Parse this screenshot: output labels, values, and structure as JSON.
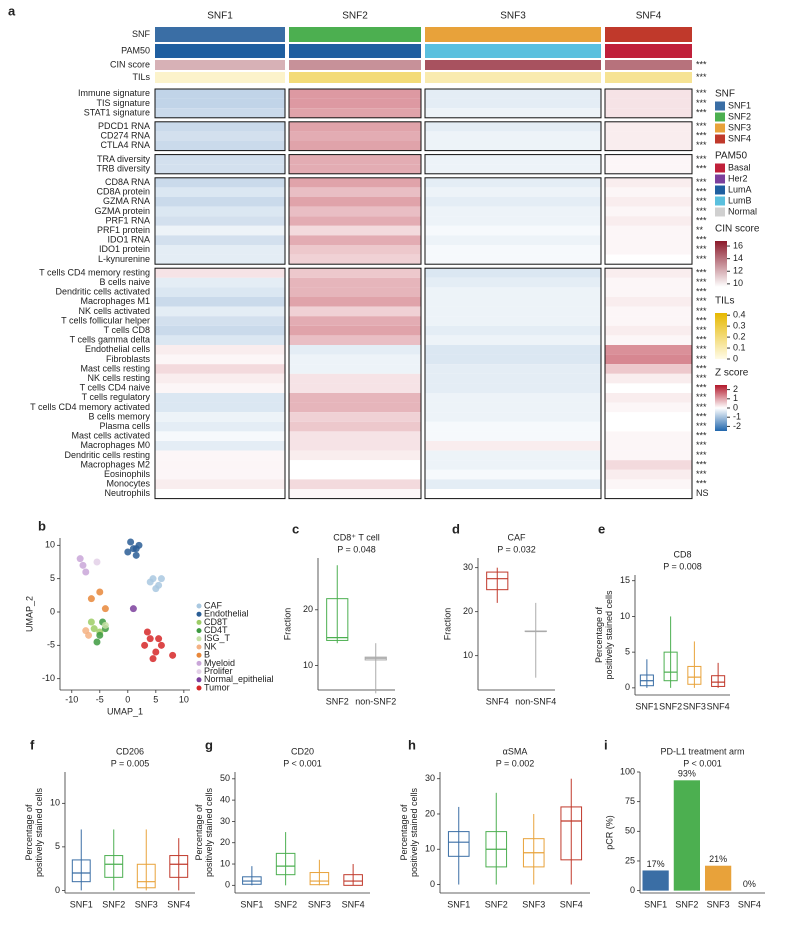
{
  "chart_data": [
    {
      "type": "heatmap",
      "panel_label": "a",
      "columns": [
        "SNF1",
        "SNF2",
        "SNF3",
        "SNF4"
      ],
      "annotation_rows": [
        {
          "label": "SNF"
        },
        {
          "label": "PAM50",
          "values": [
            "LumA",
            "LumA",
            "LumB",
            "Basal"
          ]
        },
        {
          "label": "CIN score",
          "values": [
            12,
            13,
            15,
            14
          ],
          "significance": "***"
        },
        {
          "label": "TILs",
          "values": [
            0.05,
            0.2,
            0.1,
            0.15
          ],
          "significance": "***"
        }
      ],
      "rows": [
        {
          "label": "Immune signature",
          "significance": "***",
          "values": [
            -0.7,
            1.1,
            -0.3,
            0.3
          ]
        },
        {
          "label": "TIS signature",
          "significance": "***",
          "values": [
            -0.7,
            1.1,
            -0.3,
            0.3
          ]
        },
        {
          "label": "STAT1 signature",
          "significance": "***",
          "values": [
            -0.6,
            1.0,
            -0.2,
            0.3
          ]
        },
        {
          "label": "PDCD1 RNA",
          "significance": "***",
          "values": [
            -0.6,
            1.0,
            -0.3,
            0.2
          ]
        },
        {
          "label": "CD274 RNA",
          "significance": "***",
          "values": [
            -0.5,
            0.9,
            -0.2,
            0.2
          ]
        },
        {
          "label": "CTLA4 RNA",
          "significance": "***",
          "values": [
            -0.6,
            1.0,
            -0.2,
            0.2
          ]
        },
        {
          "label": "TRA diversity",
          "significance": "***",
          "values": [
            -0.5,
            0.9,
            -0.2,
            0.1
          ]
        },
        {
          "label": "TRB diversity",
          "significance": "***",
          "values": [
            -0.5,
            0.9,
            -0.2,
            0.1
          ]
        },
        {
          "label": "CD8A RNA",
          "significance": "***",
          "values": [
            -0.6,
            1.0,
            -0.3,
            0.2
          ]
        },
        {
          "label": "CD8A protein",
          "significance": "***",
          "values": [
            -0.4,
            0.7,
            -0.2,
            0.1
          ]
        },
        {
          "label": "GZMA RNA",
          "significance": "***",
          "values": [
            -0.6,
            1.0,
            -0.3,
            0.2
          ]
        },
        {
          "label": "GZMA protein",
          "significance": "***",
          "values": [
            -0.4,
            0.7,
            -0.2,
            0.1
          ]
        },
        {
          "label": "PRF1 RNA",
          "significance": "***",
          "values": [
            -0.5,
            0.9,
            -0.2,
            0.2
          ]
        },
        {
          "label": "PRF1 protein",
          "significance": "**",
          "values": [
            -0.2,
            0.4,
            -0.1,
            0.1
          ]
        },
        {
          "label": "IDO1 RNA",
          "significance": "***",
          "values": [
            -0.5,
            0.9,
            -0.2,
            0.1
          ]
        },
        {
          "label": "IDO1 protein",
          "significance": "***",
          "values": [
            -0.3,
            0.6,
            -0.1,
            0.1
          ]
        },
        {
          "label": "L-kynurenine",
          "significance": "***",
          "values": [
            -0.3,
            0.5,
            -0.1,
            0.0
          ]
        },
        {
          "label": "T cells CD4 memory resting",
          "significance": "***",
          "values": [
            0.3,
            0.6,
            -0.4,
            0.2
          ]
        },
        {
          "label": "B cells naive",
          "significance": "***",
          "values": [
            -0.3,
            0.8,
            -0.3,
            0.1
          ]
        },
        {
          "label": "Dendritic cells activated",
          "significance": "***",
          "values": [
            -0.4,
            0.8,
            -0.2,
            0.1
          ]
        },
        {
          "label": "Macrophages M1",
          "significance": "***",
          "values": [
            -0.6,
            1.0,
            -0.2,
            0.2
          ]
        },
        {
          "label": "NK cells activated",
          "significance": "***",
          "values": [
            -0.3,
            0.5,
            -0.2,
            0.1
          ]
        },
        {
          "label": "T cells follicular helper",
          "significance": "***",
          "values": [
            -0.5,
            0.9,
            -0.2,
            0.1
          ]
        },
        {
          "label": "T cells CD8",
          "significance": "***",
          "values": [
            -0.6,
            1.0,
            -0.3,
            0.2
          ]
        },
        {
          "label": "T cells gamma delta",
          "significance": "***",
          "values": [
            -0.4,
            0.7,
            -0.2,
            0.1
          ]
        },
        {
          "label": "Endothelial cells",
          "significance": "***",
          "values": [
            0.2,
            -0.3,
            -0.4,
            1.2
          ]
        },
        {
          "label": "Fibroblasts",
          "significance": "***",
          "values": [
            0.1,
            -0.2,
            -0.4,
            1.3
          ]
        },
        {
          "label": "Mast cells resting",
          "significance": "***",
          "values": [
            0.4,
            -0.2,
            -0.3,
            0.6
          ]
        },
        {
          "label": "NK cells resting",
          "significance": "***",
          "values": [
            0.2,
            0.3,
            -0.3,
            0.2
          ]
        },
        {
          "label": "T cells CD4 naive",
          "significance": "***",
          "values": [
            0.1,
            0.3,
            -0.3,
            0.0
          ]
        },
        {
          "label": "T cells regulatory",
          "significance": "***",
          "values": [
            -0.4,
            0.8,
            -0.2,
            0.2
          ]
        },
        {
          "label": "T cells CD4 memory activated",
          "significance": "***",
          "values": [
            -0.4,
            0.8,
            -0.2,
            0.1
          ]
        },
        {
          "label": "B cells memory",
          "significance": "***",
          "values": [
            -0.2,
            0.5,
            -0.2,
            0.0
          ]
        },
        {
          "label": "Plasma cells",
          "significance": "***",
          "values": [
            -0.3,
            0.6,
            -0.1,
            0.0
          ]
        },
        {
          "label": "Mast cells activated",
          "significance": "***",
          "values": [
            -0.1,
            0.3,
            -0.1,
            0.1
          ]
        },
        {
          "label": "Macrophages M0",
          "significance": "***",
          "values": [
            -0.3,
            0.3,
            0.2,
            0.1
          ]
        },
        {
          "label": "Dendritic cells resting",
          "significance": "***",
          "values": [
            0.1,
            0.2,
            -0.2,
            0.1
          ]
        },
        {
          "label": "Macrophages M2",
          "significance": "***",
          "values": [
            0.1,
            0.0,
            -0.2,
            0.4
          ]
        },
        {
          "label": "Eosinophils",
          "significance": "***",
          "values": [
            0.1,
            0.0,
            -0.1,
            0.2
          ]
        },
        {
          "label": "Monocytes",
          "significance": "***",
          "values": [
            0.2,
            0.4,
            -0.3,
            0.1
          ]
        },
        {
          "label": "Neutrophils",
          "significance": "NS",
          "values": [
            0.0,
            0.1,
            0.0,
            0.0
          ]
        }
      ],
      "legends": [
        {
          "title": "SNF",
          "colors": [
            "#3a6ea5",
            "#4caf50",
            "#e8a23a",
            "#c0392b"
          ]
        },
        {
          "title": "PAM50",
          "items": [
            "Basal",
            "Her2",
            "LumA",
            "LumB",
            "Normal"
          ],
          "colors": [
            "#c0203a",
            "#7b3f9c",
            "#1f5fa0",
            "#5bc0de",
            "#d0d0d0"
          ]
        },
        {
          "title": "CIN score",
          "lim": [
            9.5,
            16.8
          ],
          "ticks": [
            16,
            14,
            12,
            10
          ],
          "colors": [
            "#ffffff",
            "#8b1a2b"
          ]
        },
        {
          "title": "TILs",
          "lim": [
            0,
            0.42
          ],
          "ticks": [
            0.4,
            0.3,
            0.2,
            0.1,
            0
          ],
          "colors": [
            "#fffbe6",
            "#e6b800"
          ]
        },
        {
          "title": "Z score",
          "lim": [
            -2.5,
            2.5
          ],
          "ticks": [
            2,
            1,
            0,
            -1,
            -2
          ],
          "colors": [
            "#2166ac",
            "#ffffff",
            "#b2182b"
          ]
        }
      ]
    },
    {
      "type": "scatter",
      "panel_label": "b",
      "xlabel": "UMAP_1",
      "ylabel": "UMAP_2",
      "xlim": [
        -12.1,
        11.1
      ],
      "ylim": [
        -11.7,
        11.1
      ],
      "xticks": [
        -10,
        -5,
        0,
        5,
        10
      ],
      "yticks": [
        10,
        5,
        0,
        -5,
        -10
      ],
      "series": [
        {
          "name": "CAF",
          "color": "#a9c8e0",
          "x": [
            4.5,
            5.5,
            5,
            4,
            6
          ],
          "y": [
            5,
            4,
            3.5,
            4.5,
            5
          ]
        },
        {
          "name": "Endothelial",
          "color": "#2a5d95",
          "x": [
            1,
            0,
            2,
            1.5,
            0.5,
            1.5
          ],
          "y": [
            9.5,
            9,
            10,
            8.5,
            10.5,
            9.5
          ]
        },
        {
          "name": "CD8T",
          "color": "#9ccc65",
          "x": [
            -6,
            -5,
            -6.5
          ],
          "y": [
            -2.5,
            -3,
            -1.5
          ]
        },
        {
          "name": "CD4T",
          "color": "#3d9a40",
          "x": [
            -5,
            -4,
            -5.5,
            -4.5
          ],
          "y": [
            -3.5,
            -2.5,
            -4.5,
            -1.5
          ]
        },
        {
          "name": "ISG_T",
          "color": "#c5e1a5",
          "x": [
            -4
          ],
          "y": [
            -2
          ]
        },
        {
          "name": "NK",
          "color": "#f4b183",
          "x": [
            -7,
            -7.5
          ],
          "y": [
            -3.5,
            -2.8
          ]
        },
        {
          "name": "B",
          "color": "#e8873a",
          "x": [
            -5,
            -4,
            -6.5
          ],
          "y": [
            3,
            0.5,
            2
          ]
        },
        {
          "name": "Myeloid",
          "color": "#c9a6d8",
          "x": [
            -8,
            -7.5,
            -8.5
          ],
          "y": [
            7,
            6,
            8
          ]
        },
        {
          "name": "Prolifer",
          "color": "#e3d0e8",
          "x": [
            -5.5
          ],
          "y": [
            7.5
          ]
        },
        {
          "name": "Normal_epithelial",
          "color": "#7b3f9c",
          "x": [
            1
          ],
          "y": [
            0.5
          ]
        },
        {
          "name": "Tumor",
          "color": "#d62728",
          "x": [
            4,
            5,
            3,
            4.5,
            6,
            3.5,
            5.5,
            8
          ],
          "y": [
            -4,
            -6,
            -5,
            -7,
            -5,
            -3,
            -4,
            -6.5
          ]
        }
      ]
    },
    {
      "type": "box",
      "panel_label": "c",
      "title": "CD8⁺ T cell",
      "pvalue": "P = 0.048",
      "ylabel": "Fraction",
      "categories": [
        "SNF2",
        "non-SNF2"
      ],
      "colors": [
        "#4caf50",
        "#aaaaaa"
      ],
      "boxes": [
        [
          14,
          14.5,
          15,
          22,
          28
        ],
        [
          5,
          11,
          11.3,
          11.5,
          14
        ]
      ],
      "ylim": [
        5.6,
        29.3
      ],
      "yticks": [
        10,
        20
      ]
    },
    {
      "type": "box",
      "panel_label": "d",
      "title": "CAF",
      "pvalue": "P = 0.032",
      "ylabel": "Fraction",
      "categories": [
        "SNF4",
        "non-SNF4"
      ],
      "colors": [
        "#c0392b",
        "#aaaaaa"
      ],
      "boxes": [
        [
          22,
          25,
          27.5,
          29,
          30
        ],
        [
          5,
          15.5,
          15.5,
          15.6,
          22
        ]
      ],
      "ylim": [
        2.2,
        32.2
      ],
      "yticks": [
        10,
        20,
        30
      ]
    },
    {
      "type": "box",
      "panel_label": "e",
      "title": "CD8",
      "pvalue": "P = 0.008",
      "ylabel": "Percentage of positively stained cells",
      "categories": [
        "SNF1",
        "SNF2",
        "SNF3",
        "SNF4"
      ],
      "colors": [
        "#3a6ea5",
        "#4caf50",
        "#e8a23a",
        "#c0392b"
      ],
      "boxes": [
        [
          0,
          0.3,
          1,
          1.8,
          4
        ],
        [
          0,
          1,
          2.2,
          5,
          10
        ],
        [
          0,
          0.5,
          1.5,
          3,
          6.5
        ],
        [
          0,
          0.2,
          0.8,
          1.7,
          3.5
        ]
      ],
      "ylim": [
        -1,
        15.8
      ],
      "yticks": [
        0,
        5,
        10,
        15
      ]
    },
    {
      "type": "box",
      "panel_label": "f",
      "title": "CD206",
      "pvalue": "P = 0.005",
      "ylabel": "Percentage of positively stained cells",
      "categories": [
        "SNF1",
        "SNF2",
        "SNF3",
        "SNF4"
      ],
      "colors": [
        "#3a6ea5",
        "#4caf50",
        "#e8a23a",
        "#c0392b"
      ],
      "boxes": [
        [
          0,
          1,
          2,
          3.5,
          7
        ],
        [
          0,
          1.5,
          3,
          4,
          7
        ],
        [
          0,
          0.3,
          1,
          3,
          7
        ],
        [
          0,
          1.5,
          3,
          4,
          6
        ]
      ],
      "ylim": [
        -0.3,
        13.6
      ],
      "yticks": [
        0,
        5,
        10
      ]
    },
    {
      "type": "box",
      "panel_label": "g",
      "title": "CD20",
      "pvalue": "P < 0.001",
      "ylabel": "Percentage of positively stained cells",
      "categories": [
        "SNF1",
        "SNF2",
        "SNF3",
        "SNF4"
      ],
      "colors": [
        "#3a6ea5",
        "#4caf50",
        "#e8a23a",
        "#c0392b"
      ],
      "boxes": [
        [
          0,
          0.5,
          2,
          4,
          9
        ],
        [
          0,
          5,
          9,
          15,
          25
        ],
        [
          0,
          0.3,
          2,
          6,
          12
        ],
        [
          0,
          0,
          2,
          5,
          10
        ]
      ],
      "ylim": [
        -3.6,
        53.2
      ],
      "yticks": [
        0,
        10,
        20,
        30,
        40,
        50
      ]
    },
    {
      "type": "box",
      "panel_label": "h",
      "title": "αSMA",
      "pvalue": "P = 0.002",
      "ylabel": "Percentage of positively stained cells",
      "categories": [
        "SNF1",
        "SNF2",
        "SNF3",
        "SNF4"
      ],
      "colors": [
        "#3a6ea5",
        "#4caf50",
        "#e8a23a",
        "#c0392b"
      ],
      "boxes": [
        [
          0,
          8,
          12,
          15,
          22
        ],
        [
          0,
          5,
          10,
          15,
          26
        ],
        [
          0,
          5,
          9,
          13,
          20
        ],
        [
          0,
          7,
          18,
          22,
          30
        ]
      ],
      "ylim": [
        -2.4,
        31.9
      ],
      "yticks": [
        0,
        10,
        20,
        30
      ]
    },
    {
      "type": "bar",
      "panel_label": "i",
      "title": "PD-L1 treatment arm",
      "pvalue": "P < 0.001",
      "ylabel": "pCR (%)",
      "categories": [
        "SNF1",
        "SNF2",
        "SNF3",
        "SNF4"
      ],
      "colors": [
        "#3a6ea5",
        "#4caf50",
        "#e8a23a",
        "#c0392b"
      ],
      "values": [
        17,
        93,
        21,
        0
      ],
      "value_labels": [
        "17%",
        "93%",
        "21%",
        "0%"
      ],
      "ylim": [
        -2,
        100
      ],
      "yticks": [
        0,
        25,
        50,
        75,
        100
      ]
    }
  ]
}
